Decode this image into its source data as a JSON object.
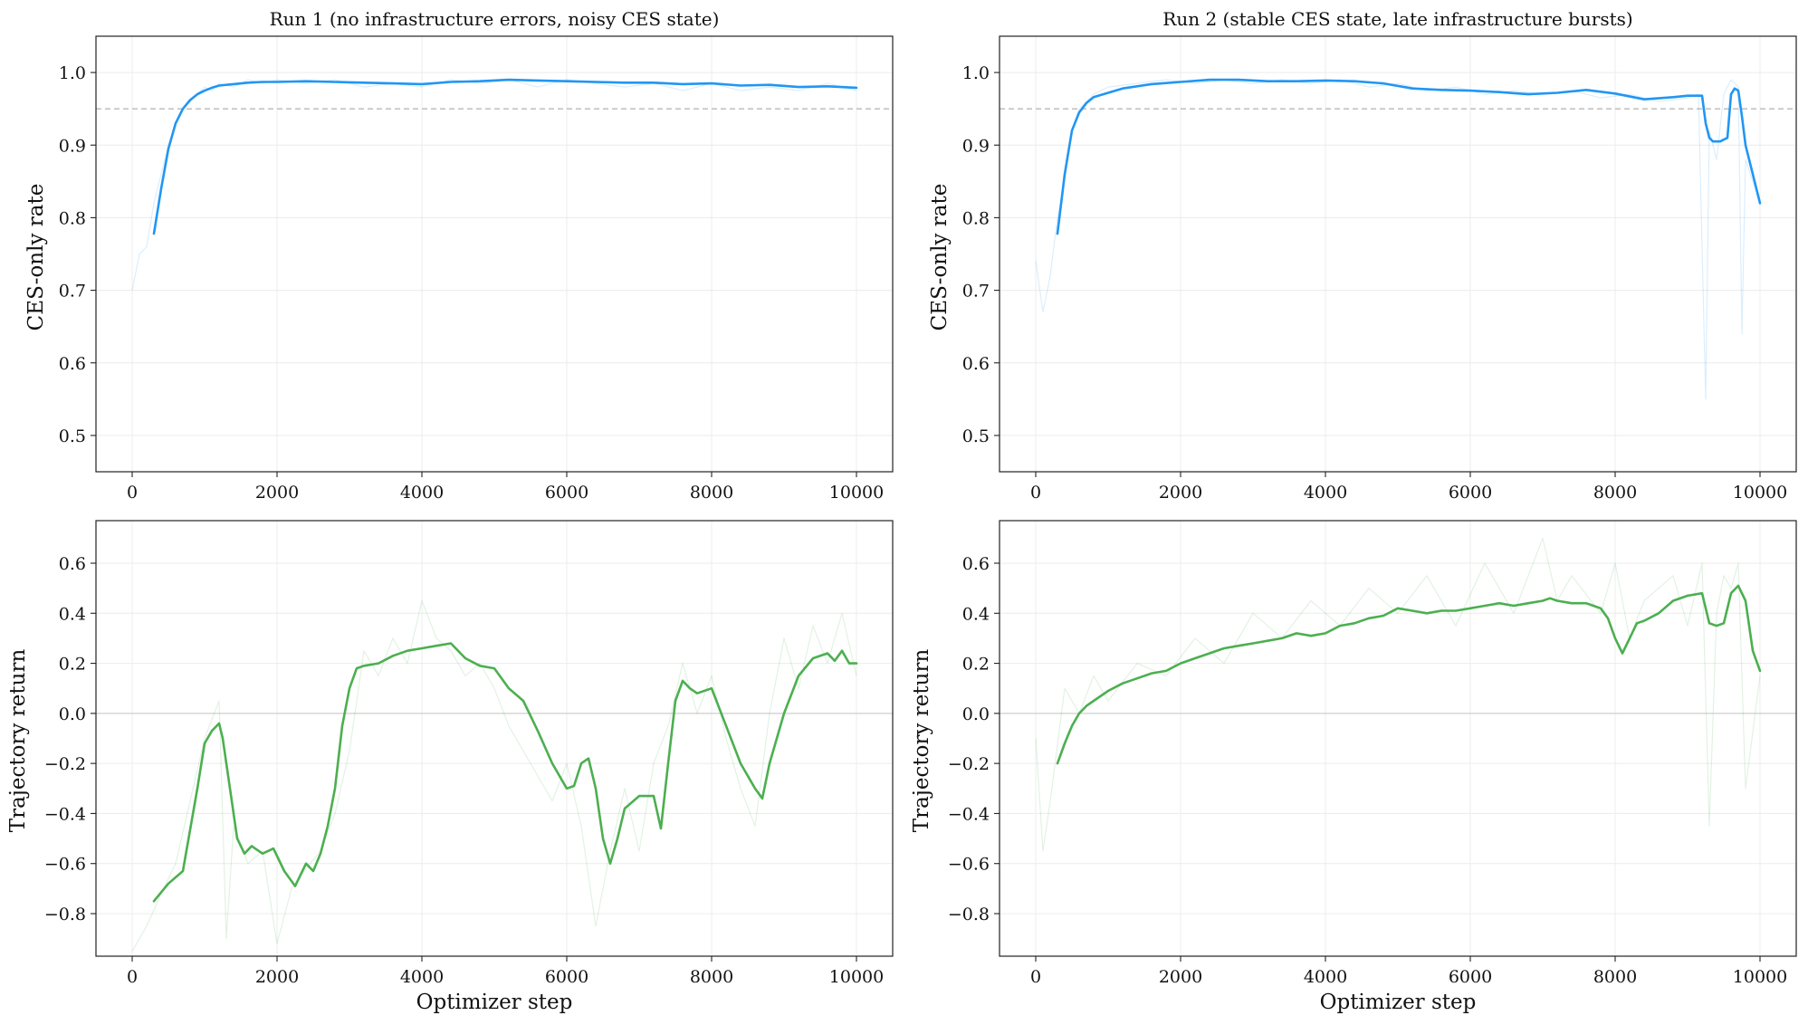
{
  "figure": {
    "accent_blue": "#2196f3",
    "accent_green": "#4caf50",
    "grid": true,
    "x_axis_title": "Optimizer step"
  },
  "chart_data": [
    {
      "type": "line",
      "title": "Run 1 (no infrastructure errors, noisy CES state)",
      "xlabel": "",
      "ylabel": "CES-only rate",
      "xlim": [
        -500,
        10500
      ],
      "ylim": [
        0.45,
        1.05
      ],
      "xticks": [
        0,
        2000,
        4000,
        6000,
        8000,
        10000
      ],
      "xtick_labels": [
        "0",
        "2000",
        "4000",
        "6000",
        "8000",
        "10000"
      ],
      "yticks": [
        0.5,
        0.6,
        0.7,
        0.8,
        0.9,
        1.0
      ],
      "ytick_labels": [
        "0.5",
        "0.6",
        "0.7",
        "0.8",
        "0.9",
        "1.0"
      ],
      "reference_line": 0.95,
      "color": "#2196f3",
      "raw": {
        "x": [
          0,
          100,
          200,
          300,
          400,
          500,
          600,
          700,
          800,
          900,
          1000,
          1100,
          1200,
          1400,
          1600,
          1800,
          2000,
          2400,
          2800,
          3200,
          3600,
          4000,
          4400,
          4800,
          5200,
          5600,
          6000,
          6400,
          6800,
          7200,
          7600,
          8000,
          8400,
          8800,
          9200,
          9600,
          10000
        ],
        "y": [
          0.7,
          0.75,
          0.76,
          0.82,
          0.86,
          0.9,
          0.93,
          0.95,
          0.96,
          0.97,
          0.98,
          0.975,
          0.985,
          0.98,
          0.99,
          0.985,
          0.99,
          0.985,
          0.99,
          0.98,
          0.985,
          0.98,
          0.99,
          0.985,
          0.99,
          0.98,
          0.99,
          0.985,
          0.98,
          0.985,
          0.975,
          0.985,
          0.975,
          0.98,
          0.975,
          0.985,
          0.975
        ]
      },
      "smoothed": {
        "x": [
          300,
          400,
          500,
          600,
          700,
          800,
          900,
          1000,
          1100,
          1200,
          1400,
          1600,
          1800,
          2000,
          2400,
          2800,
          3200,
          3600,
          4000,
          4400,
          4800,
          5200,
          5600,
          6000,
          6400,
          6800,
          7200,
          7600,
          8000,
          8400,
          8800,
          9200,
          9600,
          10000
        ],
        "y": [
          0.778,
          0.84,
          0.895,
          0.93,
          0.95,
          0.962,
          0.97,
          0.975,
          0.979,
          0.982,
          0.984,
          0.986,
          0.987,
          0.987,
          0.988,
          0.987,
          0.986,
          0.985,
          0.984,
          0.987,
          0.988,
          0.99,
          0.989,
          0.988,
          0.987,
          0.986,
          0.986,
          0.984,
          0.985,
          0.982,
          0.983,
          0.98,
          0.981,
          0.979
        ]
      }
    },
    {
      "type": "line",
      "title": "Run 2 (stable CES state, late infrastructure bursts)",
      "xlabel": "",
      "ylabel": "CES-only rate",
      "xlim": [
        -500,
        10500
      ],
      "ylim": [
        0.45,
        1.05
      ],
      "xticks": [
        0,
        2000,
        4000,
        6000,
        8000,
        10000
      ],
      "xtick_labels": [
        "0",
        "2000",
        "4000",
        "6000",
        "8000",
        "10000"
      ],
      "yticks": [
        0.5,
        0.6,
        0.7,
        0.8,
        0.9,
        1.0
      ],
      "ytick_labels": [
        "0.5",
        "0.6",
        "0.7",
        "0.8",
        "0.9",
        "1.0"
      ],
      "reference_line": 0.95,
      "color": "#2196f3",
      "raw": {
        "x": [
          0,
          100,
          200,
          300,
          400,
          500,
          600,
          800,
          1000,
          1400,
          1800,
          2200,
          2600,
          3000,
          3400,
          3800,
          4200,
          4600,
          5000,
          5400,
          5800,
          6200,
          6600,
          7000,
          7400,
          7800,
          8200,
          8600,
          9000,
          9150,
          9250,
          9300,
          9400,
          9500,
          9600,
          9700,
          9750,
          9800,
          9900,
          10000
        ],
        "y": [
          0.74,
          0.67,
          0.72,
          0.8,
          0.85,
          0.92,
          0.95,
          0.97,
          0.98,
          0.985,
          0.99,
          0.985,
          0.99,
          0.985,
          0.99,
          0.985,
          0.99,
          0.98,
          0.985,
          0.975,
          0.98,
          0.97,
          0.975,
          0.97,
          0.975,
          0.965,
          0.97,
          0.96,
          0.965,
          0.97,
          0.55,
          0.92,
          0.88,
          0.97,
          0.99,
          0.98,
          0.64,
          0.88,
          0.85,
          0.82
        ]
      },
      "smoothed": {
        "x": [
          300,
          400,
          500,
          600,
          700,
          800,
          1000,
          1200,
          1600,
          2000,
          2400,
          2800,
          3200,
          3600,
          4000,
          4400,
          4800,
          5200,
          5600,
          6000,
          6400,
          6800,
          7200,
          7600,
          8000,
          8400,
          8800,
          9000,
          9200,
          9250,
          9300,
          9350,
          9450,
          9550,
          9600,
          9650,
          9700,
          9750,
          9800,
          9900,
          10000
        ],
        "y": [
          0.778,
          0.86,
          0.92,
          0.945,
          0.958,
          0.966,
          0.972,
          0.978,
          0.984,
          0.987,
          0.99,
          0.99,
          0.988,
          0.988,
          0.989,
          0.988,
          0.985,
          0.978,
          0.976,
          0.975,
          0.973,
          0.97,
          0.972,
          0.976,
          0.971,
          0.963,
          0.966,
          0.968,
          0.968,
          0.93,
          0.91,
          0.905,
          0.905,
          0.91,
          0.97,
          0.978,
          0.975,
          0.94,
          0.9,
          0.86,
          0.82
        ]
      }
    },
    {
      "type": "line",
      "title": "",
      "xlabel": "Optimizer step",
      "ylabel": "Trajectory return",
      "xlim": [
        -500,
        10500
      ],
      "ylim": [
        -0.97,
        0.77
      ],
      "xticks": [
        0,
        2000,
        4000,
        6000,
        8000,
        10000
      ],
      "xtick_labels": [
        "0",
        "2000",
        "4000",
        "6000",
        "8000",
        "10000"
      ],
      "yticks": [
        -0.8,
        -0.6,
        -0.4,
        -0.2,
        0.0,
        0.2,
        0.4,
        0.6
      ],
      "ytick_labels": [
        "−0.8",
        "−0.6",
        "−0.4",
        "−0.2",
        "0.0",
        "0.2",
        "0.4",
        "0.6"
      ],
      "reference_line": 0.0,
      "color": "#4caf50",
      "raw": {
        "x": [
          0,
          200,
          400,
          600,
          800,
          1000,
          1200,
          1300,
          1400,
          1600,
          1800,
          2000,
          2200,
          2400,
          2600,
          2800,
          3000,
          3200,
          3400,
          3600,
          3800,
          4000,
          4200,
          4400,
          4600,
          4800,
          5000,
          5200,
          5400,
          5600,
          5800,
          6000,
          6200,
          6400,
          6600,
          6800,
          7000,
          7200,
          7400,
          7600,
          7800,
          8000,
          8200,
          8400,
          8600,
          8800,
          9000,
          9200,
          9400,
          9600,
          9800,
          10000
        ],
        "y": [
          -0.95,
          -0.85,
          -0.72,
          -0.6,
          -0.35,
          -0.1,
          0.05,
          -0.9,
          -0.45,
          -0.6,
          -0.55,
          -0.92,
          -0.7,
          -0.62,
          -0.55,
          -0.4,
          -0.15,
          0.25,
          0.15,
          0.3,
          0.2,
          0.45,
          0.3,
          0.25,
          0.15,
          0.2,
          0.1,
          -0.05,
          -0.15,
          -0.25,
          -0.35,
          -0.2,
          -0.45,
          -0.85,
          -0.55,
          -0.3,
          -0.55,
          -0.2,
          -0.05,
          0.2,
          0.0,
          0.15,
          -0.1,
          -0.3,
          -0.45,
          0.0,
          0.3,
          0.1,
          0.35,
          0.2,
          0.4,
          0.15
        ]
      },
      "smoothed": {
        "x": [
          300,
          500,
          700,
          900,
          1000,
          1100,
          1200,
          1250,
          1350,
          1450,
          1550,
          1650,
          1800,
          1950,
          2100,
          2250,
          2400,
          2500,
          2600,
          2700,
          2800,
          2900,
          3000,
          3100,
          3200,
          3400,
          3600,
          3800,
          4000,
          4200,
          4400,
          4600,
          4800,
          5000,
          5200,
          5400,
          5600,
          5800,
          6000,
          6100,
          6200,
          6300,
          6400,
          6500,
          6600,
          6700,
          6800,
          7000,
          7200,
          7300,
          7400,
          7500,
          7600,
          7700,
          7800,
          8000,
          8200,
          8400,
          8600,
          8700,
          8800,
          9000,
          9200,
          9400,
          9600,
          9700,
          9800,
          9900,
          10000
        ],
        "y": [
          -0.75,
          -0.68,
          -0.63,
          -0.3,
          -0.12,
          -0.07,
          -0.04,
          -0.1,
          -0.3,
          -0.5,
          -0.56,
          -0.53,
          -0.56,
          -0.54,
          -0.63,
          -0.69,
          -0.6,
          -0.63,
          -0.56,
          -0.45,
          -0.3,
          -0.05,
          0.1,
          0.18,
          0.19,
          0.2,
          0.23,
          0.25,
          0.26,
          0.27,
          0.28,
          0.22,
          0.19,
          0.18,
          0.1,
          0.05,
          -0.07,
          -0.2,
          -0.3,
          -0.29,
          -0.2,
          -0.18,
          -0.3,
          -0.5,
          -0.6,
          -0.5,
          -0.38,
          -0.33,
          -0.33,
          -0.46,
          -0.2,
          0.05,
          0.13,
          0.1,
          0.08,
          0.1,
          -0.05,
          -0.2,
          -0.3,
          -0.34,
          -0.2,
          0.0,
          0.15,
          0.22,
          0.24,
          0.21,
          0.25,
          0.2,
          0.2
        ]
      }
    },
    {
      "type": "line",
      "title": "",
      "xlabel": "Optimizer step",
      "ylabel": "Trajectory return",
      "xlim": [
        -500,
        10500
      ],
      "ylim": [
        -0.97,
        0.77
      ],
      "xticks": [
        0,
        2000,
        4000,
        6000,
        8000,
        10000
      ],
      "xtick_labels": [
        "0",
        "2000",
        "4000",
        "6000",
        "8000",
        "10000"
      ],
      "yticks": [
        -0.8,
        -0.6,
        -0.4,
        -0.2,
        0.0,
        0.2,
        0.4,
        0.6
      ],
      "ytick_labels": [
        "−0.8",
        "−0.6",
        "−0.4",
        "−0.2",
        "0.0",
        "0.2",
        "0.4",
        "0.6"
      ],
      "reference_line": 0.0,
      "color": "#4caf50",
      "raw": {
        "x": [
          0,
          100,
          200,
          400,
          600,
          800,
          1000,
          1400,
          1800,
          2200,
          2600,
          3000,
          3400,
          3800,
          4200,
          4600,
          5000,
          5400,
          5800,
          6200,
          6600,
          7000,
          7200,
          7400,
          7800,
          8000,
          8200,
          8400,
          8800,
          9000,
          9200,
          9300,
          9400,
          9500,
          9600,
          9700,
          9800,
          10000
        ],
        "y": [
          -0.1,
          -0.55,
          -0.35,
          0.1,
          0.0,
          0.15,
          0.05,
          0.2,
          0.15,
          0.3,
          0.2,
          0.4,
          0.3,
          0.45,
          0.35,
          0.5,
          0.4,
          0.55,
          0.35,
          0.6,
          0.4,
          0.7,
          0.45,
          0.55,
          0.4,
          0.6,
          0.3,
          0.45,
          0.55,
          0.35,
          0.6,
          -0.45,
          0.4,
          0.55,
          0.5,
          0.6,
          -0.3,
          0.15
        ]
      },
      "smoothed": {
        "x": [
          300,
          400,
          500,
          600,
          700,
          800,
          1000,
          1200,
          1400,
          1600,
          1800,
          2000,
          2200,
          2400,
          2600,
          2800,
          3000,
          3200,
          3400,
          3600,
          3800,
          4000,
          4200,
          4400,
          4600,
          4800,
          5000,
          5200,
          5400,
          5600,
          5800,
          6000,
          6200,
          6400,
          6600,
          6800,
          7000,
          7100,
          7200,
          7400,
          7600,
          7700,
          7800,
          7900,
          8000,
          8100,
          8200,
          8300,
          8400,
          8600,
          8800,
          9000,
          9200,
          9300,
          9400,
          9500,
          9600,
          9700,
          9800,
          9900,
          10000
        ],
        "y": [
          -0.2,
          -0.12,
          -0.05,
          0.0,
          0.03,
          0.05,
          0.09,
          0.12,
          0.14,
          0.16,
          0.17,
          0.2,
          0.22,
          0.24,
          0.26,
          0.27,
          0.28,
          0.29,
          0.3,
          0.32,
          0.31,
          0.32,
          0.35,
          0.36,
          0.38,
          0.39,
          0.42,
          0.41,
          0.4,
          0.41,
          0.41,
          0.42,
          0.43,
          0.44,
          0.43,
          0.44,
          0.45,
          0.46,
          0.45,
          0.44,
          0.44,
          0.43,
          0.42,
          0.38,
          0.3,
          0.24,
          0.3,
          0.36,
          0.37,
          0.4,
          0.45,
          0.47,
          0.48,
          0.36,
          0.35,
          0.36,
          0.48,
          0.51,
          0.45,
          0.25,
          0.17
        ]
      }
    }
  ]
}
